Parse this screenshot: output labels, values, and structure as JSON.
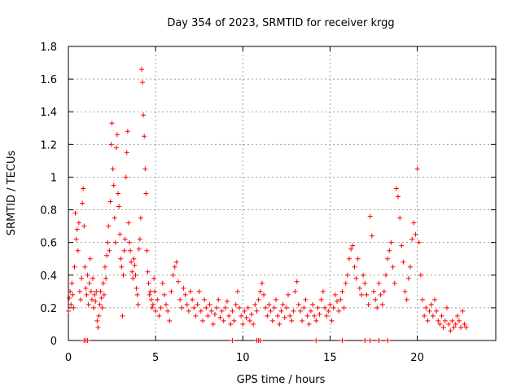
{
  "chart_data": {
    "type": "scatter",
    "title": "Day 354 of 2023, SRMTID for receiver krgg",
    "xlabel": "GPS time / hours",
    "ylabel": "SRMTID / TECUs",
    "xlim": [
      0,
      24.5
    ],
    "ylim": [
      0,
      1.8
    ],
    "x_ticks": [
      0,
      5,
      10,
      15,
      20
    ],
    "x_tick_labels": [
      "0",
      "5",
      "10",
      "15",
      "20"
    ],
    "y_ticks": [
      0,
      0.2,
      0.4,
      0.6,
      0.8,
      1.0,
      1.2,
      1.4,
      1.6,
      1.8
    ],
    "y_tick_labels": [
      "0",
      "0.2",
      "0.4",
      "0.6",
      "0.8",
      "1",
      "1.2",
      "1.4",
      "1.6",
      "1.8"
    ],
    "grid": true,
    "marker": "+",
    "color": "#ff0000",
    "series": [
      {
        "name": "SRMTID",
        "points": [
          [
            0.0,
            0.18
          ],
          [
            0.05,
            0.26
          ],
          [
            0.1,
            0.3
          ],
          [
            0.15,
            0.22
          ],
          [
            0.2,
            0.35
          ],
          [
            0.25,
            0.28
          ],
          [
            0.3,
            0.2
          ],
          [
            0.35,
            0.45
          ],
          [
            0.4,
            0.78
          ],
          [
            0.45,
            0.62
          ],
          [
            0.5,
            0.68
          ],
          [
            0.55,
            0.55
          ],
          [
            0.6,
            0.72
          ],
          [
            0.65,
            0.3
          ],
          [
            0.7,
            0.25
          ],
          [
            0.75,
            0.38
          ],
          [
            0.8,
            0.84
          ],
          [
            0.85,
            0.93
          ],
          [
            0.9,
            0.7
          ],
          [
            0.95,
            0.45
          ],
          [
            1.0,
            0.32
          ],
          [
            1.05,
            0.28
          ],
          [
            1.1,
            0.4
          ],
          [
            1.15,
            0.22
          ],
          [
            1.2,
            0.35
          ],
          [
            1.25,
            0.5
          ],
          [
            1.3,
            0.3
          ],
          [
            1.35,
            0.25
          ],
          [
            1.4,
            0.38
          ],
          [
            1.45,
            0.2
          ],
          [
            1.5,
            0.28
          ],
          [
            1.55,
            0.24
          ],
          [
            1.6,
            0.3
          ],
          [
            1.65,
            0.12
          ],
          [
            1.7,
            0.08
          ],
          [
            1.75,
            0.15
          ],
          [
            1.8,
            0.22
          ],
          [
            1.85,
            0.3
          ],
          [
            1.9,
            0.26
          ],
          [
            1.95,
            0.2
          ],
          [
            2.0,
            0.35
          ],
          [
            2.05,
            0.28
          ],
          [
            2.1,
            0.45
          ],
          [
            2.15,
            0.38
          ],
          [
            2.2,
            0.52
          ],
          [
            2.25,
            0.6
          ],
          [
            2.3,
            0.7
          ],
          [
            2.35,
            0.55
          ],
          [
            2.4,
            0.85
          ],
          [
            2.45,
            1.2
          ],
          [
            2.5,
            1.33
          ],
          [
            2.55,
            1.05
          ],
          [
            2.6,
            0.95
          ],
          [
            2.65,
            0.75
          ],
          [
            2.7,
            0.6
          ],
          [
            2.75,
            1.18
          ],
          [
            2.8,
            1.26
          ],
          [
            2.85,
            0.9
          ],
          [
            2.9,
            0.82
          ],
          [
            2.95,
            0.65
          ],
          [
            3.0,
            0.5
          ],
          [
            3.05,
            0.45
          ],
          [
            3.1,
            0.15
          ],
          [
            3.15,
            0.4
          ],
          [
            3.2,
            0.55
          ],
          [
            3.25,
            0.62
          ],
          [
            3.3,
            1.0
          ],
          [
            3.35,
            1.15
          ],
          [
            3.4,
            1.28
          ],
          [
            3.45,
            0.72
          ],
          [
            3.5,
            0.6
          ],
          [
            3.55,
            0.55
          ],
          [
            3.6,
            0.48
          ],
          [
            3.65,
            0.42
          ],
          [
            3.7,
            0.38
          ],
          [
            3.75,
            0.5
          ],
          [
            3.8,
            0.46
          ],
          [
            3.85,
            0.4
          ],
          [
            3.9,
            0.32
          ],
          [
            3.95,
            0.28
          ],
          [
            4.0,
            0.22
          ],
          [
            4.05,
            0.56
          ],
          [
            4.1,
            0.62
          ],
          [
            4.15,
            0.75
          ],
          [
            4.2,
            1.66
          ],
          [
            4.25,
            1.58
          ],
          [
            4.3,
            1.38
          ],
          [
            4.35,
            1.25
          ],
          [
            4.4,
            1.05
          ],
          [
            4.45,
            0.9
          ],
          [
            4.5,
            0.55
          ],
          [
            4.55,
            0.42
          ],
          [
            4.6,
            0.35
          ],
          [
            4.65,
            0.28
          ],
          [
            4.7,
            0.3
          ],
          [
            4.75,
            0.25
          ],
          [
            4.8,
            0.2
          ],
          [
            4.85,
            0.22
          ],
          [
            4.9,
            0.38
          ],
          [
            4.95,
            0.3
          ],
          [
            5.0,
            0.18
          ],
          [
            5.1,
            0.25
          ],
          [
            5.2,
            0.15
          ],
          [
            5.3,
            0.2
          ],
          [
            5.4,
            0.35
          ],
          [
            5.5,
            0.28
          ],
          [
            5.6,
            0.22
          ],
          [
            5.7,
            0.18
          ],
          [
            5.8,
            0.12
          ],
          [
            5.9,
            0.3
          ],
          [
            6.0,
            0.4
          ],
          [
            6.1,
            0.45
          ],
          [
            6.2,
            0.48
          ],
          [
            6.3,
            0.36
          ],
          [
            6.4,
            0.25
          ],
          [
            6.5,
            0.2
          ],
          [
            6.6,
            0.32
          ],
          [
            6.7,
            0.28
          ],
          [
            6.8,
            0.22
          ],
          [
            6.9,
            0.18
          ],
          [
            7.0,
            0.3
          ],
          [
            7.1,
            0.25
          ],
          [
            7.2,
            0.2
          ],
          [
            7.3,
            0.15
          ],
          [
            7.4,
            0.22
          ],
          [
            7.5,
            0.3
          ],
          [
            7.6,
            0.18
          ],
          [
            7.7,
            0.12
          ],
          [
            7.8,
            0.25
          ],
          [
            7.9,
            0.2
          ],
          [
            8.0,
            0.15
          ],
          [
            8.1,
            0.22
          ],
          [
            8.2,
            0.18
          ],
          [
            8.3,
            0.1
          ],
          [
            8.4,
            0.16
          ],
          [
            8.5,
            0.2
          ],
          [
            8.6,
            0.25
          ],
          [
            8.7,
            0.14
          ],
          [
            8.8,
            0.18
          ],
          [
            8.9,
            0.12
          ],
          [
            9.0,
            0.2
          ],
          [
            9.1,
            0.24
          ],
          [
            9.2,
            0.15
          ],
          [
            9.3,
            0.1
          ],
          [
            9.4,
            0.18
          ],
          [
            9.5,
            0.12
          ],
          [
            9.6,
            0.22
          ],
          [
            9.7,
            0.3
          ],
          [
            9.8,
            0.2
          ],
          [
            9.9,
            0.15
          ],
          [
            10.0,
            0.1
          ],
          [
            10.1,
            0.18
          ],
          [
            10.2,
            0.14
          ],
          [
            10.3,
            0.2
          ],
          [
            10.4,
            0.12
          ],
          [
            10.5,
            0.16
          ],
          [
            10.6,
            0.1
          ],
          [
            10.7,
            0.22
          ],
          [
            10.8,
            0.18
          ],
          [
            10.9,
            0.25
          ],
          [
            11.0,
            0.3
          ],
          [
            11.1,
            0.35
          ],
          [
            11.2,
            0.28
          ],
          [
            11.3,
            0.2
          ],
          [
            11.4,
            0.15
          ],
          [
            11.5,
            0.22
          ],
          [
            11.6,
            0.18
          ],
          [
            11.7,
            0.12
          ],
          [
            11.8,
            0.2
          ],
          [
            11.9,
            0.25
          ],
          [
            12.0,
            0.15
          ],
          [
            12.1,
            0.1
          ],
          [
            12.2,
            0.18
          ],
          [
            12.3,
            0.22
          ],
          [
            12.4,
            0.14
          ],
          [
            12.5,
            0.2
          ],
          [
            12.6,
            0.28
          ],
          [
            12.7,
            0.15
          ],
          [
            12.8,
            0.12
          ],
          [
            12.9,
            0.18
          ],
          [
            13.0,
            0.3
          ],
          [
            13.1,
            0.36
          ],
          [
            13.2,
            0.22
          ],
          [
            13.3,
            0.18
          ],
          [
            13.4,
            0.12
          ],
          [
            13.5,
            0.2
          ],
          [
            13.6,
            0.25
          ],
          [
            13.7,
            0.15
          ],
          [
            13.8,
            0.1
          ],
          [
            13.9,
            0.18
          ],
          [
            14.0,
            0.22
          ],
          [
            14.1,
            0.15
          ],
          [
            14.2,
            0.12
          ],
          [
            14.3,
            0.2
          ],
          [
            14.4,
            0.16
          ],
          [
            14.5,
            0.25
          ],
          [
            14.6,
            0.3
          ],
          [
            14.7,
            0.2
          ],
          [
            14.8,
            0.15
          ],
          [
            14.9,
            0.18
          ],
          [
            15.0,
            0.22
          ],
          [
            15.1,
            0.12
          ],
          [
            15.2,
            0.2
          ],
          [
            15.3,
            0.28
          ],
          [
            15.4,
            0.24
          ],
          [
            15.5,
            0.18
          ],
          [
            15.6,
            0.25
          ],
          [
            15.7,
            0.3
          ],
          [
            15.8,
            0.2
          ],
          [
            15.9,
            0.35
          ],
          [
            16.0,
            0.4
          ],
          [
            16.1,
            0.5
          ],
          [
            16.2,
            0.56
          ],
          [
            16.3,
            0.58
          ],
          [
            16.4,
            0.45
          ],
          [
            16.5,
            0.38
          ],
          [
            16.6,
            0.5
          ],
          [
            16.7,
            0.32
          ],
          [
            16.8,
            0.28
          ],
          [
            16.9,
            0.4
          ],
          [
            17.0,
            0.35
          ],
          [
            17.1,
            0.28
          ],
          [
            17.2,
            0.22
          ],
          [
            17.3,
            0.76
          ],
          [
            17.4,
            0.64
          ],
          [
            17.5,
            0.3
          ],
          [
            17.6,
            0.25
          ],
          [
            17.7,
            0.2
          ],
          [
            17.8,
            0.35
          ],
          [
            17.9,
            0.28
          ],
          [
            18.0,
            0.22
          ],
          [
            18.1,
            0.3
          ],
          [
            18.2,
            0.4
          ],
          [
            18.3,
            0.5
          ],
          [
            18.4,
            0.55
          ],
          [
            18.5,
            0.6
          ],
          [
            18.6,
            0.45
          ],
          [
            18.7,
            0.35
          ],
          [
            18.8,
            0.93
          ],
          [
            18.9,
            0.88
          ],
          [
            19.0,
            0.75
          ],
          [
            19.1,
            0.58
          ],
          [
            19.2,
            0.48
          ],
          [
            19.3,
            0.3
          ],
          [
            19.4,
            0.25
          ],
          [
            19.5,
            0.38
          ],
          [
            19.6,
            0.45
          ],
          [
            19.7,
            0.62
          ],
          [
            19.8,
            0.72
          ],
          [
            19.9,
            0.65
          ],
          [
            20.0,
            1.05
          ],
          [
            20.1,
            0.6
          ],
          [
            20.2,
            0.4
          ],
          [
            20.3,
            0.25
          ],
          [
            20.4,
            0.15
          ],
          [
            20.5,
            0.2
          ],
          [
            20.6,
            0.12
          ],
          [
            20.7,
            0.18
          ],
          [
            20.8,
            0.22
          ],
          [
            20.9,
            0.15
          ],
          [
            21.0,
            0.25
          ],
          [
            21.1,
            0.18
          ],
          [
            21.2,
            0.12
          ],
          [
            21.3,
            0.1
          ],
          [
            21.4,
            0.15
          ],
          [
            21.5,
            0.08
          ],
          [
            21.6,
            0.12
          ],
          [
            21.7,
            0.2
          ],
          [
            21.8,
            0.1
          ],
          [
            21.9,
            0.06
          ],
          [
            22.0,
            0.12
          ],
          [
            22.1,
            0.08
          ],
          [
            22.2,
            0.1
          ],
          [
            22.3,
            0.15
          ],
          [
            22.4,
            0.12
          ],
          [
            22.5,
            0.08
          ],
          [
            22.6,
            0.18
          ],
          [
            22.7,
            0.1
          ],
          [
            22.8,
            0.08
          ]
        ],
        "zero_points": [
          0.9,
          1.0,
          1.1,
          9.4,
          10.8,
          10.9,
          11.0,
          14.2,
          15.7,
          17.0,
          17.3,
          17.8,
          18.3
        ]
      }
    ]
  }
}
